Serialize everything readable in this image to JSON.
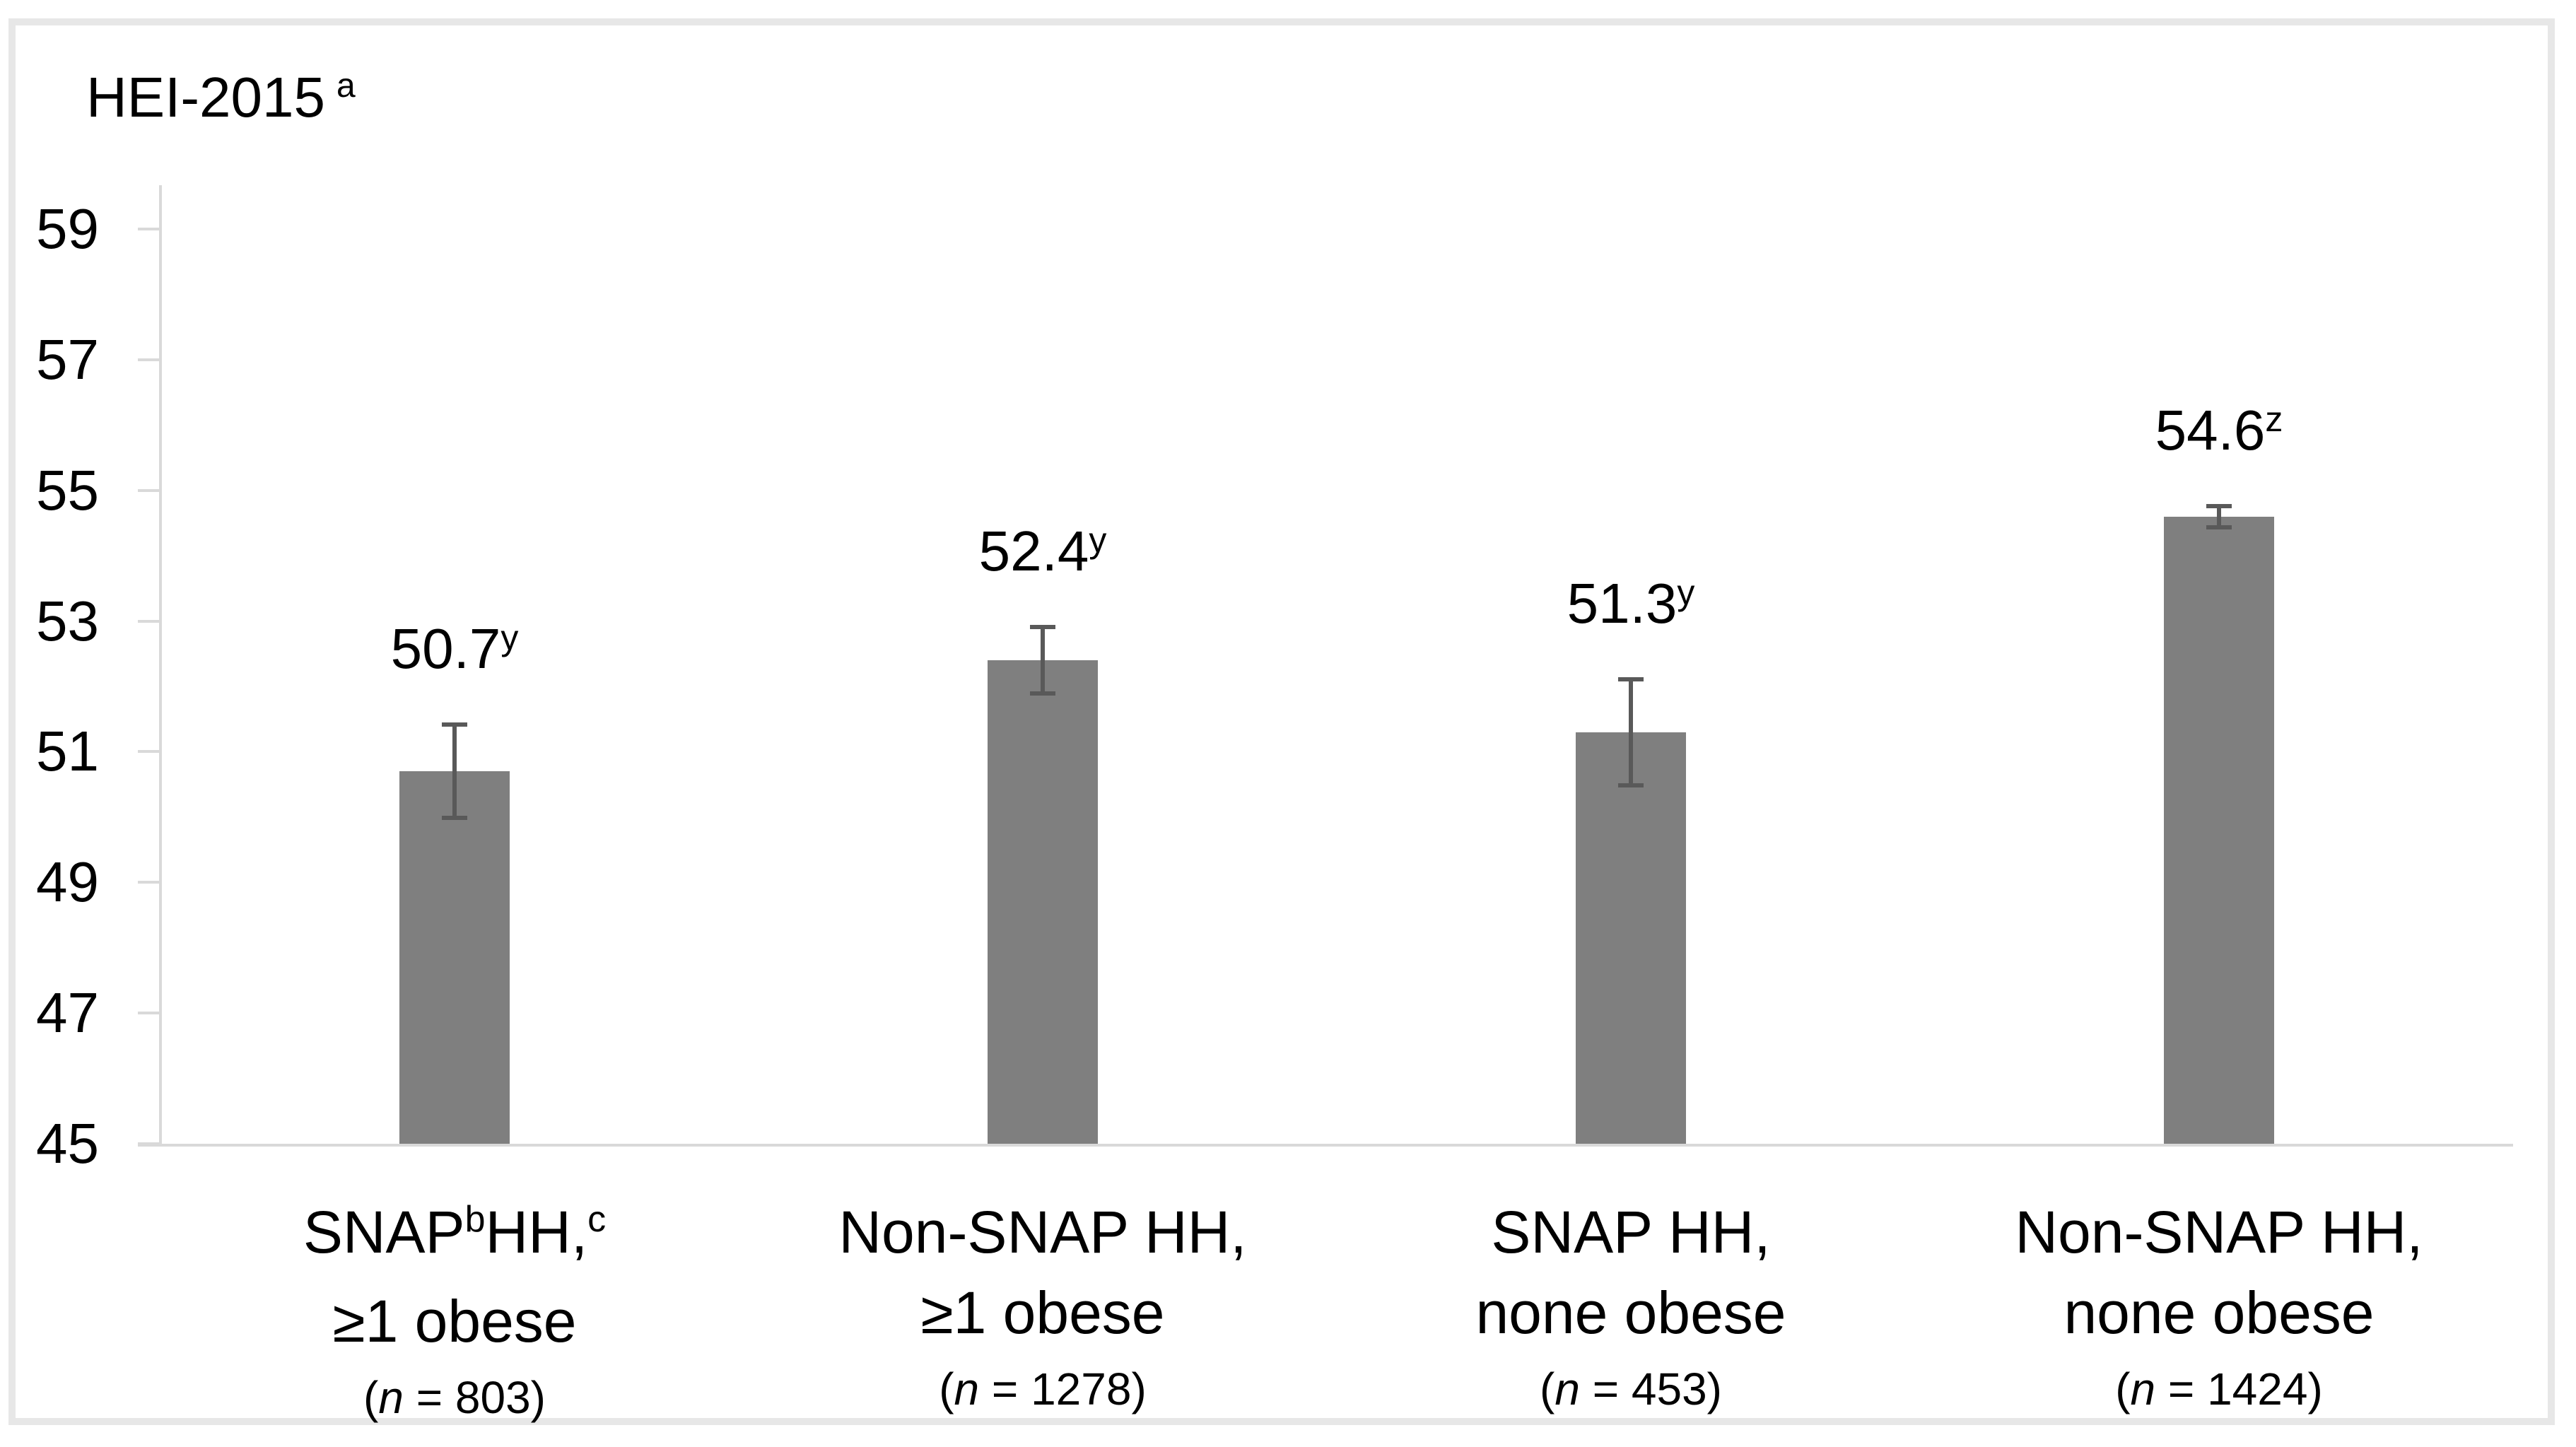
{
  "chart_data": {
    "type": "bar",
    "title": "HEI-2015",
    "title_superscript": "a",
    "ylim": [
      45,
      59.7
    ],
    "yticks": [
      59,
      57,
      55,
      53,
      51,
      49,
      47,
      45
    ],
    "grid": false,
    "legend": false,
    "bar_color": "#7f7f7f",
    "error_bar_color": "#595959",
    "axis_color": "#d9d9d9",
    "frame_color": "#e7e7e7",
    "text_color": "#000000",
    "categories_plain": [
      "SNAP HH, ≥1 obese (n = 803)",
      "Non-SNAP HH, ≥1 obese (n = 1278)",
      "SNAP HH, none obese (n = 453)",
      "Non-SNAP HH, none obese (n = 1424)"
    ],
    "values": [
      50.7,
      52.4,
      51.3,
      54.6
    ],
    "errors": [
      0.7,
      0.5,
      0.8,
      0.15
    ],
    "sample_sizes": [
      803,
      1278,
      453,
      1424
    ],
    "significance_letters": [
      "y",
      "y",
      "y",
      "z"
    ],
    "bars": [
      {
        "value": 50.7,
        "error": 0.7,
        "value_label": [
          {
            "text": "50.7"
          },
          {
            "text": "y",
            "sup": true
          }
        ],
        "label_lines": [
          [
            {
              "text": "SNAP"
            },
            {
              "text": "b",
              "sup": true
            },
            {
              "text": "HH,"
            },
            {
              "text": "c",
              "sup": true
            }
          ],
          [
            {
              "text": "≥1 obese"
            }
          ],
          [
            {
              "text": "("
            },
            {
              "text": "n",
              "italic": true
            },
            {
              "text": " = 803)"
            }
          ]
        ]
      },
      {
        "value": 52.4,
        "error": 0.5,
        "value_label": [
          {
            "text": "52.4"
          },
          {
            "text": "y",
            "sup": true
          }
        ],
        "label_lines": [
          [
            {
              "text": "Non-SNAP HH,"
            }
          ],
          [
            {
              "text": "≥1 obese"
            }
          ],
          [
            {
              "text": "("
            },
            {
              "text": "n",
              "italic": true
            },
            {
              "text": " = 1278)"
            }
          ]
        ]
      },
      {
        "value": 51.3,
        "error": 0.8,
        "value_label": [
          {
            "text": "51.3"
          },
          {
            "text": "y",
            "sup": true
          }
        ],
        "label_lines": [
          [
            {
              "text": "SNAP HH,"
            }
          ],
          [
            {
              "text": "none obese"
            }
          ],
          [
            {
              "text": "("
            },
            {
              "text": "n",
              "italic": true
            },
            {
              "text": " = 453)"
            }
          ]
        ]
      },
      {
        "value": 54.6,
        "error": 0.15,
        "value_label": [
          {
            "text": "54.6"
          },
          {
            "text": "z",
            "sup": true
          }
        ],
        "label_lines": [
          [
            {
              "text": "Non-SNAP HH,"
            }
          ],
          [
            {
              "text": "none obese"
            }
          ],
          [
            {
              "text": "("
            },
            {
              "text": "n",
              "italic": true
            },
            {
              "text": " = 1424)"
            }
          ]
        ]
      }
    ]
  }
}
